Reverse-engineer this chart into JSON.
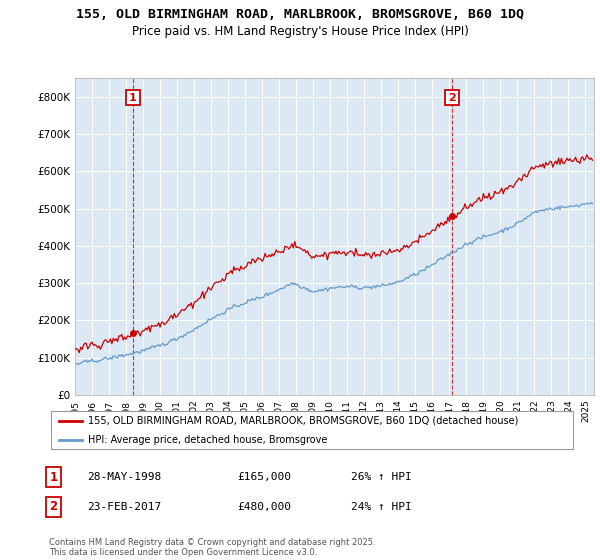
{
  "title_line1": "155, OLD BIRMINGHAM ROAD, MARLBROOK, BROMSGROVE, B60 1DQ",
  "title_line2": "Price paid vs. HM Land Registry's House Price Index (HPI)",
  "ylim": [
    0,
    850000
  ],
  "yticks": [
    0,
    100000,
    200000,
    300000,
    400000,
    500000,
    600000,
    700000,
    800000
  ],
  "ytick_labels": [
    "£0",
    "£100K",
    "£200K",
    "£300K",
    "£400K",
    "£500K",
    "£600K",
    "£700K",
    "£800K"
  ],
  "xlim_start": 1995.0,
  "xlim_end": 2025.5,
  "xticks": [
    1995,
    1996,
    1997,
    1998,
    1999,
    2000,
    2001,
    2002,
    2003,
    2004,
    2005,
    2006,
    2007,
    2008,
    2009,
    2010,
    2011,
    2012,
    2013,
    2014,
    2015,
    2016,
    2017,
    2018,
    2019,
    2020,
    2021,
    2022,
    2023,
    2024,
    2025
  ],
  "sale1_date": 1998.41,
  "sale1_price": 165000,
  "sale1_label": "1",
  "sale1_hpi_pct": "26%",
  "sale1_date_str": "28-MAY-1998",
  "sale2_date": 2017.15,
  "sale2_price": 480000,
  "sale2_label": "2",
  "sale2_hpi_pct": "24%",
  "sale2_date_str": "23-FEB-2017",
  "line_color_sold": "#cc0000",
  "line_color_hpi": "#6699cc",
  "marker_color_sold": "#cc0000",
  "legend_label1": "155, OLD BIRMINGHAM ROAD, MARLBROOK, BROMSGROVE, B60 1DQ (detached house)",
  "legend_label2": "HPI: Average price, detached house, Bromsgrove",
  "annotation_box_color": "#cc0000",
  "footer_text": "Contains HM Land Registry data © Crown copyright and database right 2025.\nThis data is licensed under the Open Government Licence v3.0.",
  "plot_bg_color": "#dce9f5",
  "grid_color": "#ffffff",
  "fig_bg_color": "#ffffff"
}
